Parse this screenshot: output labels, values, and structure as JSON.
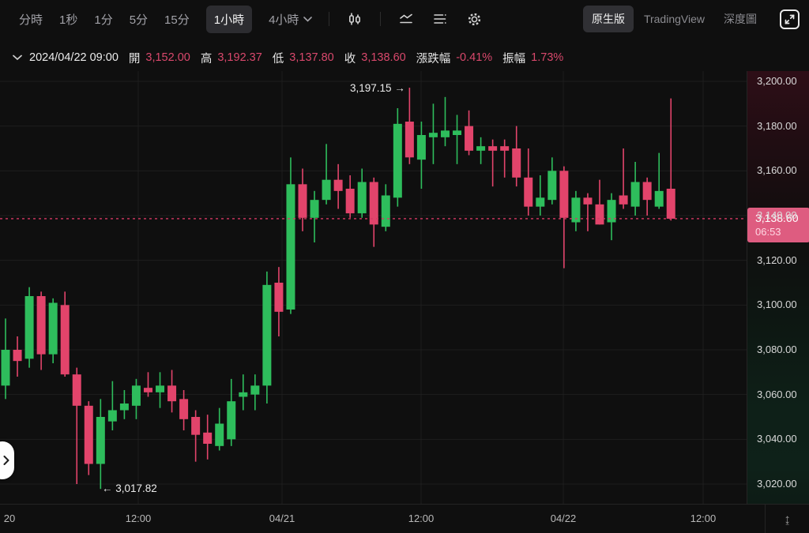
{
  "toolbar": {
    "timeframes": [
      {
        "label": "分時",
        "selected": false
      },
      {
        "label": "1秒",
        "selected": false
      },
      {
        "label": "1分",
        "selected": false
      },
      {
        "label": "5分",
        "selected": false
      },
      {
        "label": "15分",
        "selected": false
      },
      {
        "label": "1小時",
        "selected": true
      },
      {
        "label": "4小時",
        "selected": false,
        "has_dropdown": true
      }
    ],
    "icons": [
      "candlestick-icon",
      "line-chart-icon",
      "indicators-icon",
      "settings-icon"
    ],
    "view_tabs": [
      {
        "label": "原生版",
        "selected": true
      },
      {
        "label": "TradingView",
        "selected": false
      },
      {
        "label": "深度圖",
        "selected": false
      }
    ],
    "expand_icon": "expand-icon"
  },
  "info_bar": {
    "date": "2024/04/22 09:00",
    "fields": [
      {
        "label": "開",
        "value": "3,152.00"
      },
      {
        "label": "高",
        "value": "3,192.37"
      },
      {
        "label": "低",
        "value": "3,137.80"
      },
      {
        "label": "收",
        "value": "3,138.60"
      },
      {
        "label": "漲跌幅",
        "value": "-0.41%"
      },
      {
        "label": "振幅",
        "value": "1.73%"
      }
    ]
  },
  "chart_data": {
    "type": "candlestick",
    "interval": "1小時",
    "title": "",
    "ylabel": "",
    "ylim": [
      3010,
      3205
    ],
    "grid": true,
    "price_axis_ticks": [
      "3,200.00",
      "3,180.00",
      "3,160.00",
      "3,140.00",
      "3,120.00",
      "3,100.00",
      "3,080.00",
      "3,060.00",
      "3,040.00",
      "3,020.00"
    ],
    "time_axis_ticks": [
      {
        "label": "20",
        "x": 7
      },
      {
        "label": "12:00",
        "x": 175
      },
      {
        "label": "04/21",
        "x": 357
      },
      {
        "label": "12:00",
        "x": 533
      },
      {
        "label": "04/22",
        "x": 713
      },
      {
        "label": "12:00",
        "x": 890
      }
    ],
    "current_price": 3138.6,
    "current_price_label": "3,138.60",
    "countdown": "06:53",
    "high_annotation": "3,197.15 →",
    "high_annotation_value": 3197.15,
    "low_annotation": "← 3,017.82",
    "low_annotation_value": 3017.82,
    "candles_ohlc": [
      [
        3064,
        3094,
        3058,
        3080
      ],
      [
        3080,
        3086,
        3068,
        3075
      ],
      [
        3076,
        3108,
        3072,
        3104
      ],
      [
        3104,
        3106,
        3071,
        3078
      ],
      [
        3078,
        3103,
        3074,
        3101
      ],
      [
        3100,
        3106,
        3068,
        3069
      ],
      [
        3069,
        3072,
        3020,
        3055
      ],
      [
        3055,
        3057,
        3024,
        3029
      ],
      [
        3029,
        3058,
        3017.82,
        3050
      ],
      [
        3048,
        3066,
        3044,
        3053
      ],
      [
        3053,
        3062,
        3049,
        3056
      ],
      [
        3055,
        3067,
        3049,
        3064
      ],
      [
        3063,
        3070,
        3059,
        3061
      ],
      [
        3061,
        3070,
        3054,
        3064
      ],
      [
        3064,
        3071,
        3052,
        3057
      ],
      [
        3058,
        3062,
        3044,
        3049
      ],
      [
        3050,
        3053,
        3030,
        3042
      ],
      [
        3043,
        3051,
        3031,
        3038
      ],
      [
        3037,
        3054,
        3035,
        3047
      ],
      [
        3040,
        3067,
        3037,
        3057
      ],
      [
        3059,
        3069,
        3053,
        3061
      ],
      [
        3060,
        3069,
        3053,
        3064
      ],
      [
        3064,
        3115,
        3056,
        3109
      ],
      [
        3110,
        3117,
        3086,
        3097
      ],
      [
        3098,
        3166,
        3096,
        3154
      ],
      [
        3154,
        3161,
        3133,
        3139
      ],
      [
        3139,
        3151,
        3128,
        3147
      ],
      [
        3147,
        3172,
        3145,
        3156
      ],
      [
        3156,
        3163,
        3143,
        3151
      ],
      [
        3152,
        3158,
        3139,
        3141
      ],
      [
        3141,
        3161,
        3139,
        3155
      ],
      [
        3155,
        3157,
        3126,
        3136
      ],
      [
        3135,
        3154,
        3133,
        3149
      ],
      [
        3148,
        3188,
        3144,
        3181
      ],
      [
        3182,
        3197.15,
        3163,
        3166
      ],
      [
        3165,
        3182,
        3152,
        3176
      ],
      [
        3175,
        3190,
        3163,
        3177
      ],
      [
        3175,
        3193,
        3171,
        3178
      ],
      [
        3176,
        3185,
        3163,
        3178
      ],
      [
        3180,
        3187,
        3167,
        3169
      ],
      [
        3169,
        3175,
        3163,
        3171
      ],
      [
        3171,
        3174,
        3153,
        3169
      ],
      [
        3171,
        3174,
        3157,
        3169
      ],
      [
        3170,
        3180,
        3153,
        3157
      ],
      [
        3157,
        3170,
        3140,
        3144
      ],
      [
        3144,
        3158,
        3140,
        3148
      ],
      [
        3147,
        3166,
        3145,
        3160
      ],
      [
        3160,
        3162,
        3116.5,
        3139
      ],
      [
        3137,
        3151,
        3133,
        3148
      ],
      [
        3148,
        3150,
        3133,
        3145
      ],
      [
        3145,
        3156,
        3136,
        3136
      ],
      [
        3137,
        3150,
        3129,
        3147
      ],
      [
        3149,
        3170,
        3143,
        3145
      ],
      [
        3144,
        3164,
        3140,
        3155
      ],
      [
        3155,
        3157,
        3140,
        3147
      ],
      [
        3144,
        3168,
        3143,
        3151
      ],
      [
        3152,
        3192.37,
        3137.8,
        3138.6
      ]
    ],
    "colors": {
      "up": "#2ebd5c",
      "down": "#e2446b",
      "down_text": "#d9486c",
      "badge": "#de5c80",
      "price_line": "#d73965",
      "grid": "#1e1e1e"
    }
  },
  "axis_corner": {
    "scale_icon_glyph": "↨"
  }
}
